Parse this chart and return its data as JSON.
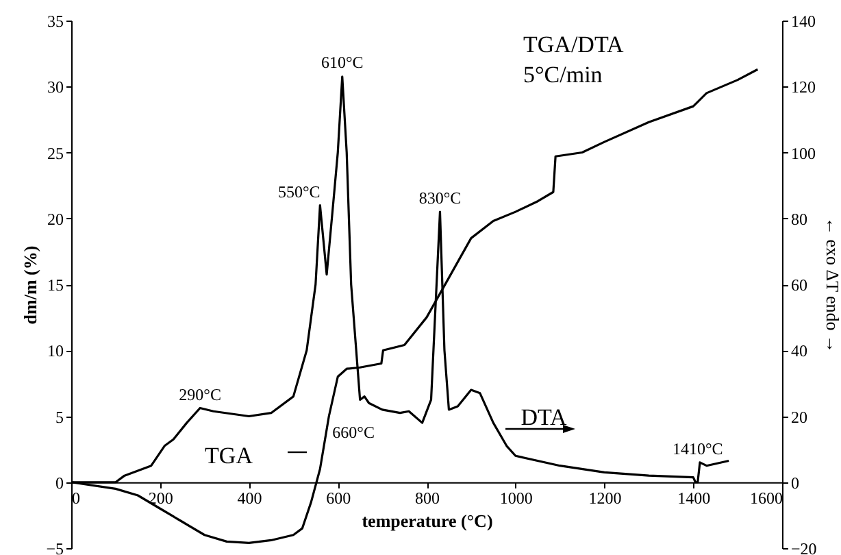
{
  "chart_data": {
    "type": "line",
    "title": "TGA/DTA",
    "subtitle": "5°C/min",
    "xlabel": "temperature (°C)",
    "ylabel": "dm/m (%)",
    "y2label": "← exo ΔT endo →",
    "xlim": [
      0,
      1600
    ],
    "xticks": [
      0,
      200,
      400,
      600,
      800,
      1000,
      1200,
      1400,
      1600
    ],
    "ylim": [
      -5,
      35
    ],
    "yticks": [
      -5,
      0,
      5,
      10,
      15,
      20,
      25,
      30,
      35
    ],
    "y2lim": [
      -20,
      140
    ],
    "y2ticks": [
      -20,
      0,
      20,
      40,
      60,
      80,
      100,
      120,
      140
    ],
    "grid": false,
    "legend": "bottom left",
    "series": [
      {
        "name": "TGA",
        "color": "#000000",
        "x": [
          0,
          100,
          150,
          200,
          250,
          300,
          350,
          400,
          450,
          500,
          520,
          540,
          560,
          580,
          600,
          620,
          650,
          698,
          702,
          750,
          800,
          850,
          900,
          950,
          1000,
          1050,
          1085,
          1090,
          1150,
          1200,
          1300,
          1400,
          1430,
          1500,
          1545
        ],
        "values": [
          0,
          -0.5,
          -1,
          -2,
          -3,
          -4,
          -4.5,
          -4.6,
          -4.4,
          -4,
          -3.5,
          -1.5,
          1,
          5,
          8,
          8.6,
          8.7,
          9,
          10,
          10.4,
          12.5,
          15.5,
          18.5,
          19.8,
          20.5,
          21.3,
          22,
          24.7,
          25,
          25.8,
          27.3,
          28.5,
          29.5,
          30.5,
          31.3
        ]
      },
      {
        "name": "DTA",
        "color": "#000000",
        "axis": "y2",
        "x": [
          0,
          100,
          120,
          180,
          210,
          230,
          260,
          290,
          320,
          400,
          450,
          500,
          530,
          550,
          560,
          570,
          575,
          590,
          600,
          610,
          620,
          630,
          650,
          660,
          670,
          700,
          740,
          760,
          790,
          810,
          830,
          840,
          850,
          870,
          900,
          920,
          950,
          980,
          1000,
          1100,
          1200,
          1300,
          1400,
          1405,
          1410,
          1415,
          1430,
          1480
        ],
        "values": [
          0,
          0,
          2,
          5,
          11,
          13,
          18,
          22.5,
          21.5,
          20,
          21,
          26,
          40,
          60,
          84,
          70,
          63,
          85,
          100,
          123,
          100,
          60,
          25,
          26,
          24,
          22,
          21,
          21.5,
          18,
          25,
          82,
          40,
          22,
          23,
          28,
          27,
          18,
          11,
          8,
          5,
          3,
          2,
          1.5,
          0,
          0,
          6,
          5,
          6.5
        ]
      }
    ],
    "annotations": [
      {
        "text": "290°C",
        "x": 290,
        "y": 5.6
      },
      {
        "text": "550°C",
        "x": 550,
        "y": 21
      },
      {
        "text": "610°C",
        "x": 610,
        "y": 30.8
      },
      {
        "text": "830°C",
        "x": 830,
        "y": 20.5
      },
      {
        "text": "660°C",
        "x": 660,
        "y": 6.5
      },
      {
        "text": "1410°C",
        "x": 1410,
        "y": 1.5
      }
    ]
  }
}
